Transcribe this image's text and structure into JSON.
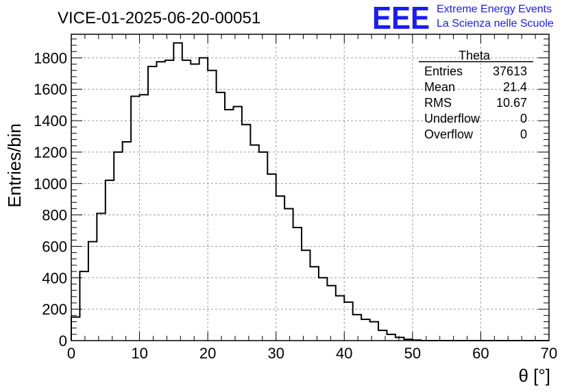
{
  "chart_data": {
    "type": "histogram",
    "title": "VICE-01-2025-06-20-00051",
    "xlabel": "θ [°]",
    "ylabel": "Entries/bin",
    "xlim": [
      0,
      70
    ],
    "ylim": [
      0,
      1950
    ],
    "x_ticks": [
      0,
      10,
      20,
      30,
      40,
      50,
      60,
      70
    ],
    "y_ticks": [
      0,
      200,
      400,
      600,
      800,
      1000,
      1200,
      1400,
      1600,
      1800
    ],
    "grid": true,
    "bin_width": 1.25,
    "bin_edges_start": 0,
    "values": [
      150,
      440,
      630,
      810,
      1020,
      1200,
      1265,
      1555,
      1565,
      1745,
      1775,
      1785,
      1895,
      1785,
      1760,
      1800,
      1720,
      1580,
      1470,
      1490,
      1375,
      1245,
      1200,
      1060,
      920,
      840,
      720,
      575,
      470,
      400,
      350,
      285,
      245,
      165,
      135,
      120,
      65,
      40,
      20,
      8,
      3,
      0,
      0,
      0,
      0,
      0,
      0,
      0,
      0,
      0,
      0,
      0,
      0,
      0,
      0,
      0
    ]
  },
  "stats_box": {
    "title": "Theta",
    "rows": [
      {
        "label": "Entries",
        "value": "37613"
      },
      {
        "label": "Mean",
        "value": "21.4"
      },
      {
        "label": "RMS",
        "value": "10.67"
      },
      {
        "label": "Underflow",
        "value": "0"
      },
      {
        "label": "Overflow",
        "value": "0"
      }
    ]
  },
  "logo": {
    "mark": "EEE",
    "line1": "Extreme Energy Events",
    "line2": "La Scienza nelle Scuole",
    "color": "#1a1aff"
  }
}
